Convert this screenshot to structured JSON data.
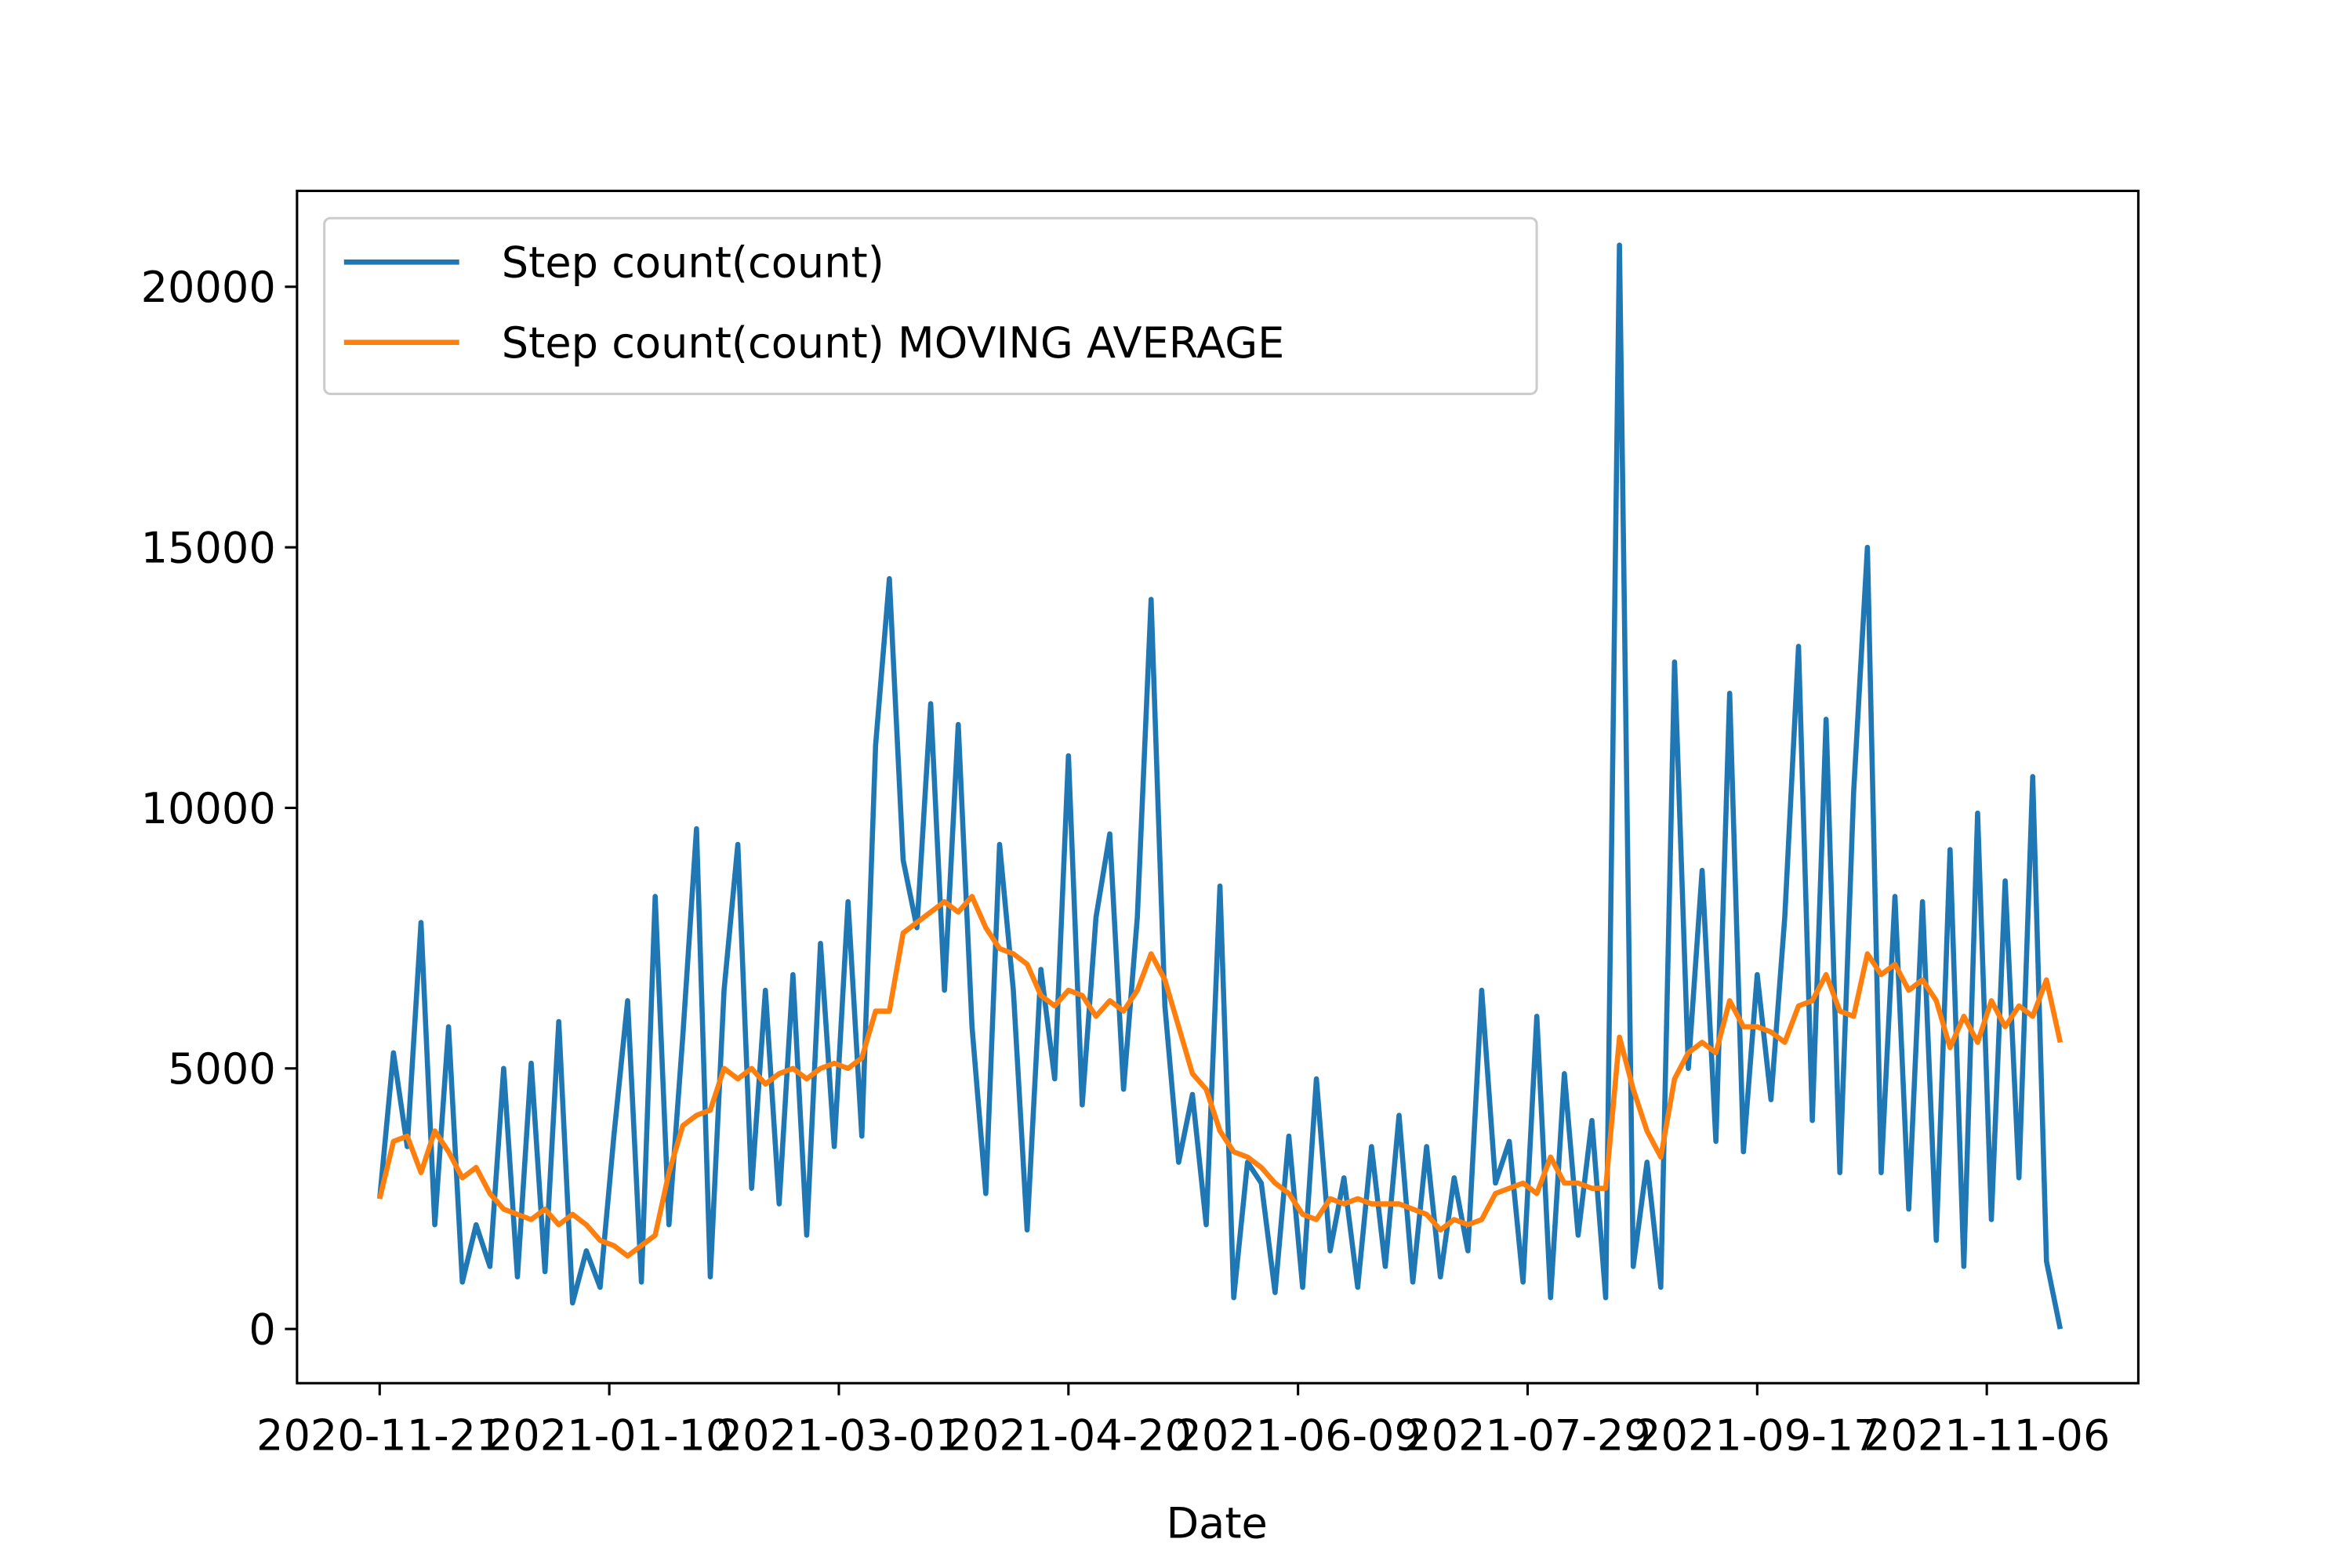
{
  "chart_data": {
    "type": "line",
    "x_label": "Date",
    "legend": "upper left",
    "x": [
      "2020-11-21",
      "2020-11-24",
      "2020-11-27",
      "2020-11-30",
      "2020-12-03",
      "2020-12-06",
      "2020-12-09",
      "2020-12-12",
      "2020-12-15",
      "2020-12-18",
      "2020-12-21",
      "2020-12-24",
      "2020-12-27",
      "2020-12-30",
      "2021-01-02",
      "2021-01-05",
      "2021-01-08",
      "2021-01-11",
      "2021-01-14",
      "2021-01-17",
      "2021-01-20",
      "2021-01-23",
      "2021-01-26",
      "2021-01-29",
      "2021-02-01",
      "2021-02-04",
      "2021-02-07",
      "2021-02-10",
      "2021-02-13",
      "2021-02-16",
      "2021-02-19",
      "2021-02-22",
      "2021-02-25",
      "2021-02-28",
      "2021-03-03",
      "2021-03-06",
      "2021-03-09",
      "2021-03-12",
      "2021-03-15",
      "2021-03-18",
      "2021-03-21",
      "2021-03-24",
      "2021-03-27",
      "2021-03-30",
      "2021-04-02",
      "2021-04-05",
      "2021-04-08",
      "2021-04-11",
      "2021-04-14",
      "2021-04-17",
      "2021-04-20",
      "2021-04-23",
      "2021-04-26",
      "2021-04-29",
      "2021-05-02",
      "2021-05-05",
      "2021-05-08",
      "2021-05-11",
      "2021-05-14",
      "2021-05-17",
      "2021-05-20",
      "2021-05-23",
      "2021-05-26",
      "2021-05-29",
      "2021-06-01",
      "2021-06-04",
      "2021-06-07",
      "2021-06-10",
      "2021-06-13",
      "2021-06-16",
      "2021-06-19",
      "2021-06-22",
      "2021-06-25",
      "2021-06-28",
      "2021-07-01",
      "2021-07-04",
      "2021-07-07",
      "2021-07-10",
      "2021-07-13",
      "2021-07-16",
      "2021-07-19",
      "2021-07-22",
      "2021-07-25",
      "2021-07-28",
      "2021-07-31",
      "2021-08-03",
      "2021-08-06",
      "2021-08-09",
      "2021-08-12",
      "2021-08-15",
      "2021-08-18",
      "2021-08-21",
      "2021-08-24",
      "2021-08-27",
      "2021-08-30",
      "2021-09-02",
      "2021-09-05",
      "2021-09-08",
      "2021-09-11",
      "2021-09-14",
      "2021-09-17",
      "2021-09-20",
      "2021-09-23",
      "2021-09-26",
      "2021-09-29",
      "2021-10-02",
      "2021-10-05",
      "2021-10-08",
      "2021-10-11",
      "2021-10-14",
      "2021-10-17",
      "2021-10-20",
      "2021-10-23",
      "2021-10-26",
      "2021-10-29",
      "2021-11-01",
      "2021-11-04",
      "2021-11-07",
      "2021-11-10",
      "2021-11-13",
      "2021-11-16",
      "2021-11-19",
      "2021-11-22"
    ],
    "series": [
      {
        "name": "Step count(count)",
        "color": "#1f77b4",
        "values": [
          2500,
          5300,
          3500,
          7800,
          2000,
          5800,
          900,
          2000,
          1200,
          5000,
          1000,
          5100,
          1100,
          5900,
          500,
          1500,
          800,
          3700,
          6300,
          900,
          8300,
          2000,
          5600,
          9600,
          1000,
          6500,
          9300,
          2700,
          6500,
          2400,
          6800,
          1800,
          7400,
          3500,
          8200,
          3700,
          11200,
          14400,
          9000,
          7700,
          12000,
          6500,
          11600,
          5800,
          2600,
          9300,
          6500,
          1900,
          6900,
          4800,
          11000,
          4300,
          7900,
          9500,
          4600,
          7900,
          14000,
          6200,
          3200,
          4500,
          2000,
          8500,
          600,
          3200,
          2800,
          700,
          3700,
          800,
          4800,
          1500,
          2900,
          800,
          3500,
          1200,
          4100,
          900,
          3500,
          1000,
          2900,
          1500,
          6500,
          2800,
          3600,
          900,
          6000,
          600,
          4900,
          1800,
          4000,
          600,
          20800,
          1200,
          3200,
          800,
          12800,
          5000,
          8800,
          3600,
          12200,
          3400,
          6800,
          4400,
          7900,
          13100,
          4000,
          11700,
          3000,
          10300,
          15000,
          3000,
          8300,
          2300,
          8200,
          1700,
          9200,
          1200,
          9900,
          2100,
          8600,
          2900,
          10600,
          1300,
          0
        ]
      },
      {
        "name": "Step count(count) MOVING AVERAGE",
        "color": "#ff7f0e",
        "values": [
          2500,
          3600,
          3700,
          3000,
          3800,
          3400,
          2900,
          3100,
          2600,
          2300,
          2200,
          2100,
          2300,
          2000,
          2200,
          2000,
          1700,
          1600,
          1400,
          1600,
          1800,
          3000,
          3900,
          4100,
          4200,
          5000,
          4800,
          5000,
          4700,
          4900,
          5000,
          4800,
          5000,
          5100,
          5000,
          5200,
          6100,
          6100,
          7600,
          7800,
          8000,
          8200,
          8000,
          8300,
          7700,
          7300,
          7200,
          7000,
          6400,
          6200,
          6500,
          6400,
          6000,
          6300,
          6100,
          6500,
          7200,
          6700,
          5800,
          4900,
          4600,
          3800,
          3400,
          3300,
          3100,
          2800,
          2600,
          2200,
          2100,
          2500,
          2400,
          2500,
          2400,
          2400,
          2400,
          2300,
          2200,
          1900,
          2100,
          2000,
          2100,
          2600,
          2700,
          2800,
          2600,
          3300,
          2800,
          2800,
          2700,
          2700,
          5600,
          4600,
          3800,
          3300,
          4800,
          5300,
          5500,
          5300,
          6300,
          5800,
          5800,
          5700,
          5500,
          6200,
          6300,
          6800,
          6100,
          6000,
          7200,
          6800,
          7000,
          6500,
          6700,
          6300,
          5400,
          6000,
          5500,
          6300,
          5800,
          6200,
          6000,
          6700,
          5500
        ]
      }
    ],
    "xlim": [
      "2020-11-03",
      "2021-12-09"
    ],
    "xticks": [
      "2020-11-21",
      "2021-01-10",
      "2021-03-01",
      "2021-04-20",
      "2021-06-09",
      "2021-07-29",
      "2021-09-17",
      "2021-11-06"
    ],
    "ylim": [
      -1040,
      21840
    ],
    "yticks": [
      0,
      5000,
      10000,
      15000,
      20000
    ],
    "grid": false
  }
}
